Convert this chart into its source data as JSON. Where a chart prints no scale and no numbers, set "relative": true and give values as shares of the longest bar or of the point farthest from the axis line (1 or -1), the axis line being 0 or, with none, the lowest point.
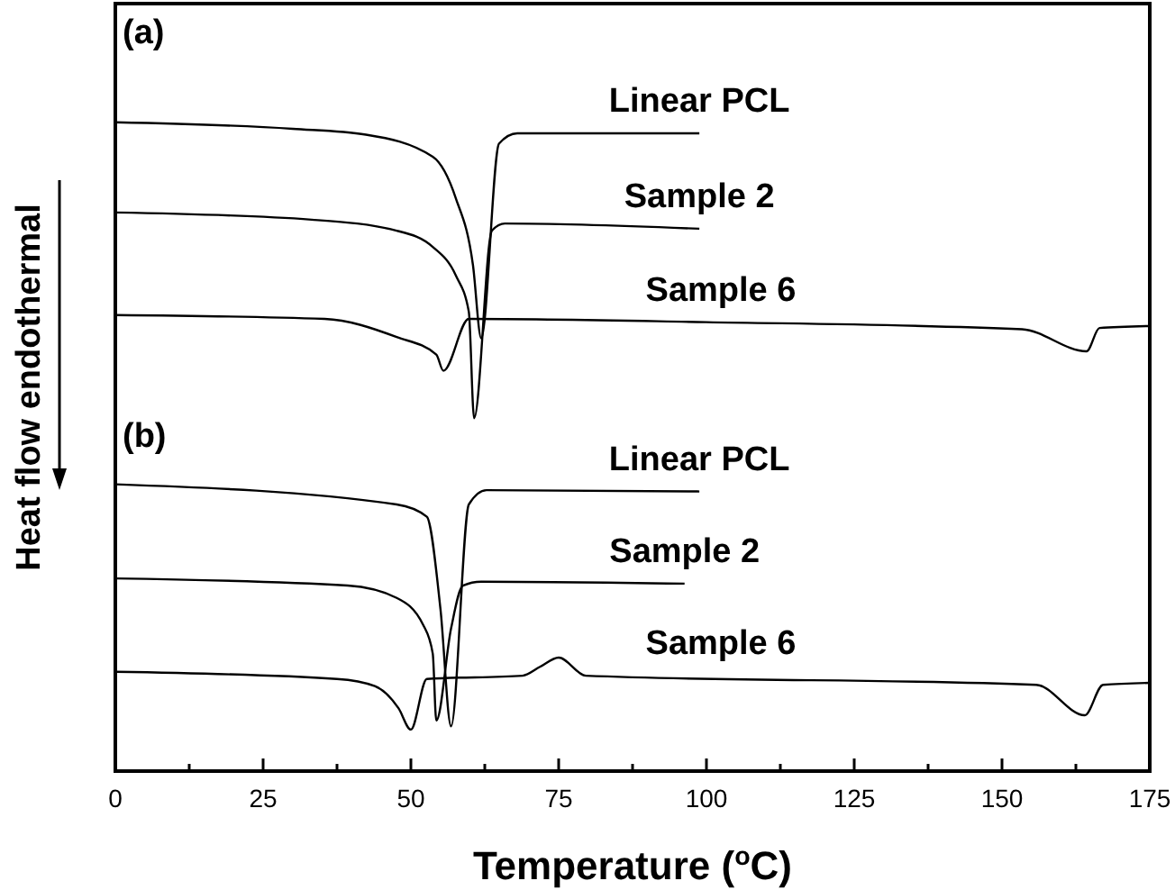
{
  "chart_data": {
    "type": "line",
    "relative": true,
    "xlabel": "Temperature ($^{o}$C)",
    "ylabel": "Heat flow endothermal",
    "annotations": [
      "(a)",
      "(b)"
    ],
    "xlim": [
      0,
      175
    ],
    "xticks": [
      0,
      {
        "value": 12.5,
        "label": null
      },
      25,
      {
        "value": 37.5,
        "label": null
      },
      50,
      {
        "value": 62.5,
        "label": null
      },
      75,
      {
        "value": 87.5,
        "label": null
      },
      100,
      {
        "value": 112.5,
        "label": null
      },
      125,
      {
        "value": 137.5,
        "label": null
      },
      150,
      {
        "value": 162.5,
        "label": null
      },
      175
    ],
    "tick_labels": "x",
    "marker": "none",
    "line_style": "solid",
    "series": [
      {
        "name": "Linear PCL",
        "color": "#000000",
        "x": [
          0,
          30,
          42.4,
          53.7,
          57.6,
          60.5,
          61.9,
          64.9,
          68,
          98.8
        ],
        "values": [
          1,
          0.99,
          0.981,
          0.947,
          0.883,
          0.78,
          0.667,
          0.967,
          0.983,
          0.983
        ]
      },
      {
        "name": "Sample 2",
        "color": "#000000",
        "x": [
          0,
          33.2,
          47.6,
          53.7,
          57.6,
          59.8,
          60.7,
          63.7,
          65.9,
          98.8
        ],
        "values": [
          0.861,
          0.85,
          0.833,
          0.808,
          0.764,
          0.708,
          0.544,
          0.833,
          0.844,
          0.836
        ]
      },
      {
        "name": "Sample 6",
        "color": "#000000",
        "x": [
          0,
          35.4,
          47.6,
          54.3,
          55.5,
          59.8,
          100,
          153.4,
          164.3,
          166.5,
          175
        ],
        "values": [
          0.703,
          0.697,
          0.669,
          0.642,
          0.617,
          0.697,
          0.692,
          0.681,
          0.647,
          0.683,
          0.686
        ]
      },
      {
        "name": "Linear PCL",
        "color": "#000000",
        "x": [
          0,
          47.6,
          52.7,
          55,
          56.8,
          59.8,
          62.8,
          98.8
        ],
        "values": [
          0.442,
          0.411,
          0.392,
          0.25,
          0.069,
          0.411,
          0.433,
          0.431
        ]
      },
      {
        "name": "Sample 2",
        "color": "#000000",
        "x": [
          0,
          39.3,
          47.6,
          52.1,
          53.7,
          54.3,
          56.8,
          58.8,
          61.9,
          96.3
        ],
        "values": [
          0.297,
          0.286,
          0.267,
          0.225,
          0.181,
          0.078,
          0.22,
          0.286,
          0.292,
          0.289
        ]
      },
      {
        "name": "Sample 6",
        "color": "#000000",
        "x": [
          0,
          37.5,
          43.9,
          47.9,
          50,
          52.7,
          68.9,
          71.9,
          75,
          79.6,
          155.8,
          164,
          167.1,
          175
        ],
        "values": [
          0.153,
          0.142,
          0.131,
          0.097,
          0.064,
          0.142,
          0.147,
          0.161,
          0.175,
          0.147,
          0.133,
          0.086,
          0.133,
          0.136
        ]
      }
    ]
  }
}
